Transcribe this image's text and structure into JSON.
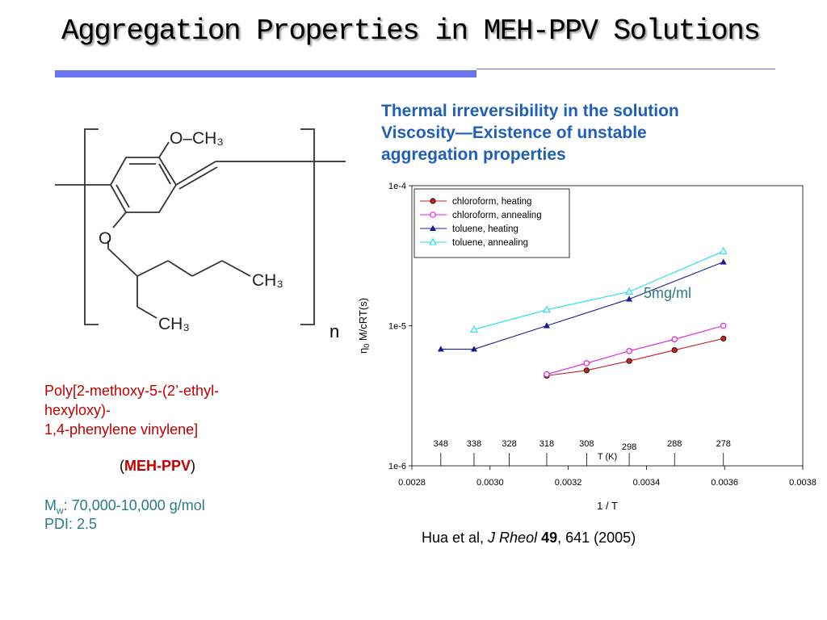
{
  "slide": {
    "title": "Aggregation Properties in MEH-PPV Solutions",
    "subtitle_lines": [
      "Thermal irreversibility in the solution",
      "Viscosity—Existence of unstable",
      "aggregation properties"
    ]
  },
  "structure": {
    "o_ch3": "O–CH₃",
    "o": "O",
    "ch3_upper": "CH₃",
    "ch3_lower": "CH₃",
    "repeat": "n"
  },
  "polymer": {
    "name_lines": [
      "Poly[2-methoxy-5-(2’-ethyl-",
      "hexyloxy)-",
      "1,4-phenylene vinylene]"
    ],
    "abbr_open": "(",
    "abbr": "MEH-PPV",
    "abbr_close": ")",
    "mw_label": "M",
    "mw_sub": "w",
    "mw_value": ": 70,000-10,000 g/mol",
    "pdi": "PDI: 2.5"
  },
  "citation": {
    "authors": "Hua et al, ",
    "journal": "J Rheol",
    "volume": "49",
    "rest": ", 641 (2005)"
  },
  "chart_data": {
    "type": "line",
    "title": "",
    "xlabel": "1 / T",
    "ylabel_eta": "η",
    "ylabel_sub": "0",
    "ylabel_rest": " M/cRT(s)",
    "xlim": [
      0.0028,
      0.0038
    ],
    "ylim": [
      1e-06,
      0.0001
    ],
    "y_scale": "log",
    "x_ticks": [
      "0.0028",
      "0.0030",
      "0.0032",
      "0.0034",
      "0.0036",
      "0.0038"
    ],
    "y_ticks": [
      "1e-6",
      "1e-5",
      "1e-4"
    ],
    "legend_position": "top-left",
    "annotation": "5mg/ml",
    "top_axis_label": "T (K)",
    "temperature_ticks": [
      {
        "label": "348",
        "x": 0.002874
      },
      {
        "label": "338",
        "x": 0.002959
      },
      {
        "label": "328",
        "x": 0.003049
      },
      {
        "label": "318",
        "x": 0.003145
      },
      {
        "label": "308",
        "x": 0.003247
      },
      {
        "label": "298",
        "x": 0.003356
      },
      {
        "label": "288",
        "x": 0.003472
      },
      {
        "label": "278",
        "x": 0.003597
      }
    ],
    "series": [
      {
        "name": "chloroform, heating",
        "color": "#cc2020",
        "marker": "dot",
        "x": [
          0.003145,
          0.003247,
          0.003356,
          0.003472,
          0.003597
        ],
        "y": [
          4.4e-06,
          4.8e-06,
          5.6e-06,
          6.7e-06,
          8.1e-06
        ]
      },
      {
        "name": "chloroform, annealing",
        "color": "#e020e0",
        "marker": "circle",
        "x": [
          0.003145,
          0.003247,
          0.003356,
          0.003472,
          0.003597
        ],
        "y": [
          4.5e-06,
          5.4e-06,
          6.6e-06,
          8e-06,
          1e-05
        ]
      },
      {
        "name": "toluene, heating",
        "color": "#1a1a90",
        "marker": "triangle",
        "x": [
          0.002874,
          0.002959,
          0.003145,
          0.003356,
          0.003597
        ],
        "y": [
          6.8e-06,
          6.8e-06,
          1e-05,
          1.55e-05,
          2.85e-05
        ]
      },
      {
        "name": "toluene, annealing",
        "color": "#20e0e0",
        "marker": "triangle-open",
        "x": [
          0.002959,
          0.003145,
          0.003356,
          0.003597
        ],
        "y": [
          9.4e-06,
          1.3e-05,
          1.75e-05,
          3.4e-05
        ]
      }
    ]
  }
}
